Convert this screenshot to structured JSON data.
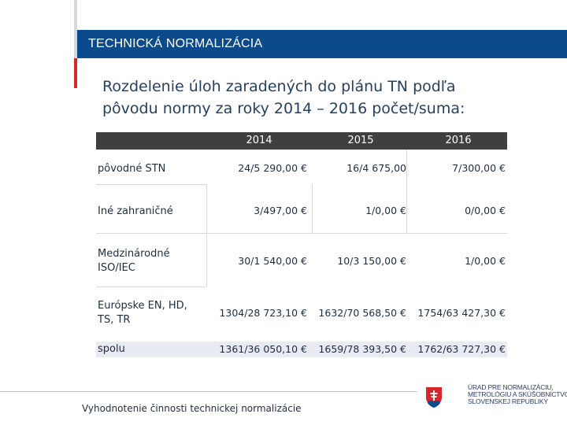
{
  "header": {
    "title": "TECHNICKÁ NORMALIZÁCIA"
  },
  "heading": {
    "line1": "Rozdelenie  úloh zaradených do plánu TN podľa",
    "line2": "pôvodu normy za roky 2014 – 2016 počet/suma:"
  },
  "table": {
    "columns": [
      "2014",
      "2015",
      "2016"
    ],
    "rows": [
      {
        "label": "pôvodné STN",
        "values": [
          "24/5 290,00 €",
          "16/4 675,00",
          "7/300,00 €"
        ]
      },
      {
        "label": "Iné zahraničné",
        "values": [
          "3/497,00 €",
          "1/0,00 €",
          "0/0,00 €"
        ]
      },
      {
        "label": "Medzinárodné ISO/IEC",
        "values": [
          "30/1 540,00 €",
          "10/3 150,00 €",
          "1/0,00 €"
        ]
      },
      {
        "label": "Európske EN, HD, TS, TR",
        "values": [
          "1304/28 723,10 €",
          "1632/70 568,50 €",
          "1754/63 427,30 €"
        ]
      },
      {
        "label": "spolu",
        "values": [
          "1361/36 050,10 €",
          "1659/78 393,50 €",
          "1762/63 727,30 €"
        ]
      }
    ]
  },
  "footer": {
    "text": "Vyhodnotenie činnosti technickej normalizácie"
  },
  "logo": {
    "lines": [
      "ÚRAD PRE NORMALIZÁCIU,",
      "METROLÓGIU A SKÚŠOBNÍCTVO",
      "SLOVENSKEJ REPUBLIKY"
    ],
    "icon": "slovak-coat-of-arms-icon"
  },
  "colors": {
    "header_band": "#0b4a8b",
    "accent_red": "#d7262b",
    "table_header": "#3f3f3f"
  }
}
